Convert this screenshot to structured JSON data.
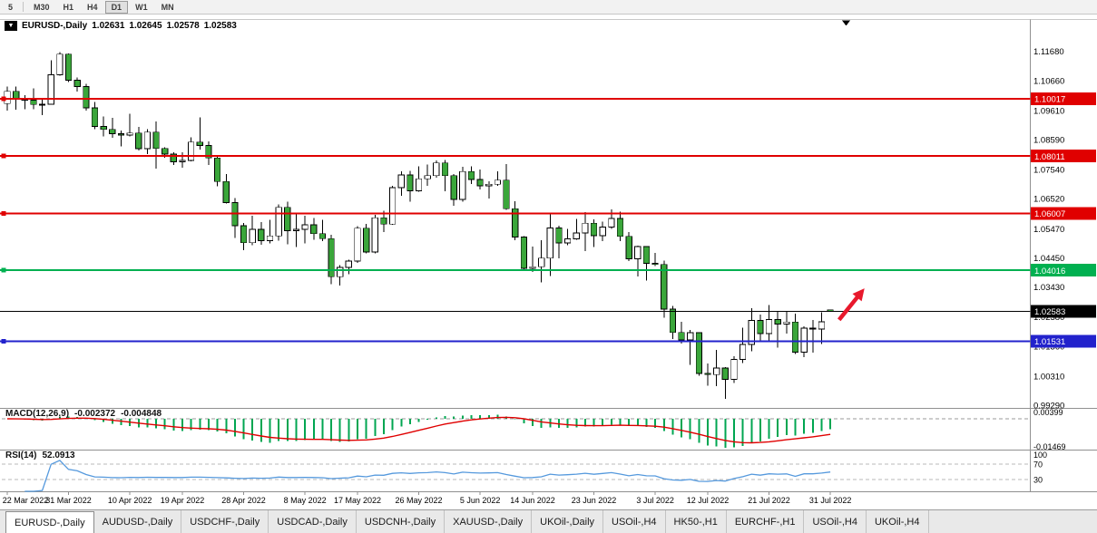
{
  "toolbar": {
    "periods": [
      {
        "label": "5"
      },
      {
        "label": "M30"
      },
      {
        "label": "H1"
      },
      {
        "label": "H4"
      },
      {
        "label": "D1",
        "active": true
      },
      {
        "label": "W1"
      },
      {
        "label": "MN"
      }
    ]
  },
  "chart": {
    "symbol_icon": "▼",
    "symbol": "EURUSD-,Daily",
    "open": "1.02631",
    "high": "1.02645",
    "low": "1.02578",
    "close": "1.02583"
  },
  "indicators": {
    "macd": {
      "name": "MACD(12,26,9)",
      "main_value": "-0.002372",
      "signal_value": "-0.004848",
      "axis_max": "0.00399",
      "axis_min": "-0.01469",
      "scale_max": 0.00399,
      "scale_min": -0.01469
    },
    "rsi": {
      "name": "RSI(14)",
      "value": "52.0913",
      "axis_labels": [
        "100",
        "70",
        "30"
      ],
      "levels": [
        70,
        30
      ]
    }
  },
  "price_axis": {
    "labels": [
      "1.11680",
      "1.10660",
      "1.09610",
      "1.08590",
      "1.07540",
      "1.06520",
      "1.05470",
      "1.04450",
      "1.03430",
      "1.02380",
      "1.01360",
      "1.00310",
      "0.99290"
    ]
  },
  "hlines": [
    {
      "price": 1.10017,
      "label": "1.10017",
      "color": "#e00000",
      "width": 2,
      "anchor": true
    },
    {
      "price": 1.08011,
      "label": "1.08011",
      "color": "#e00000",
      "width": 2,
      "anchor": true
    },
    {
      "price": 1.06007,
      "label": "1.06007",
      "color": "#e00000",
      "width": 2,
      "anchor": true
    },
    {
      "price": 1.04016,
      "label": "1.04016",
      "color": "#00b050",
      "width": 2,
      "anchor": true
    },
    {
      "price": 1.01531,
      "label": "1.01531",
      "color": "#2222cc",
      "width": 2,
      "anchor": true
    },
    {
      "price": 1.02583,
      "label": "1.02583",
      "color": "#000000",
      "width": 1,
      "anchor": false
    }
  ],
  "annotation_arrow": {
    "color": "#e8192c",
    "from_bar": 95.0,
    "to_bar": 97.9,
    "start_price": 1.0228,
    "end_price": 1.0338
  },
  "chart_data": {
    "type": "candlestick",
    "symbol": "EURUSD",
    "timeframe": "Daily",
    "ylim": [
      0.9929,
      1.1278
    ],
    "price_top": 1.1278,
    "price_bottom": 0.9929,
    "x_date_labels": [
      {
        "bar": 0,
        "text": "22 Mar 2022"
      },
      {
        "bar": 7,
        "text": "31 Mar 2022"
      },
      {
        "bar": 14,
        "text": "10 Apr 2022"
      },
      {
        "bar": 20,
        "text": "19 Apr 2022"
      },
      {
        "bar": 27,
        "text": "28 Apr 2022"
      },
      {
        "bar": 34,
        "text": "8 May 2022"
      },
      {
        "bar": 40,
        "text": "17 May 2022"
      },
      {
        "bar": 47,
        "text": "26 May 2022"
      },
      {
        "bar": 54,
        "text": "5 Jun 2022"
      },
      {
        "bar": 60,
        "text": "14 Jun 2022"
      },
      {
        "bar": 67,
        "text": "23 Jun 2022"
      },
      {
        "bar": 74,
        "text": "3 Jul 2022"
      },
      {
        "bar": 80,
        "text": "12 Jul 2022"
      },
      {
        "bar": 87,
        "text": "21 Jul 2022"
      },
      {
        "bar": 94,
        "text": "31 Jul 2022"
      }
    ],
    "candles": [
      [
        1.0985,
        1.1045,
        1.096,
        1.1028
      ],
      [
        1.1028,
        1.1044,
        1.0963,
        1.1004
      ],
      [
        1.1004,
        1.1014,
        1.0965,
        1.0997
      ],
      [
        1.0997,
        1.1039,
        1.0965,
        1.0982
      ],
      [
        1.0982,
        1.0999,
        1.0944,
        1.0983
      ],
      [
        1.0983,
        1.1137,
        1.0981,
        1.1086
      ],
      [
        1.1086,
        1.1166,
        1.1083,
        1.1158
      ],
      [
        1.1158,
        1.116,
        1.106,
        1.1067
      ],
      [
        1.1067,
        1.1077,
        1.1027,
        1.1045
      ],
      [
        1.1045,
        1.1055,
        1.096,
        1.097
      ],
      [
        1.097,
        1.099,
        1.0895,
        1.0905
      ],
      [
        1.0905,
        1.094,
        1.087,
        1.0895
      ],
      [
        1.0895,
        1.0935,
        1.0865,
        1.088
      ],
      [
        1.088,
        1.089,
        1.0835,
        1.0875
      ],
      [
        1.0875,
        1.095,
        1.087,
        1.0882
      ],
      [
        1.0882,
        1.0904,
        1.0821,
        1.0827
      ],
      [
        1.0827,
        1.0896,
        1.0809,
        1.0885
      ],
      [
        1.0885,
        1.0923,
        1.0757,
        1.0828
      ],
      [
        1.0828,
        1.0832,
        1.0796,
        1.0808
      ],
      [
        1.0808,
        1.0815,
        1.077,
        1.0781
      ],
      [
        1.0781,
        1.0815,
        1.0761,
        1.0786
      ],
      [
        1.0786,
        1.0867,
        1.0783,
        1.085
      ],
      [
        1.085,
        1.0936,
        1.0824,
        1.0838
      ],
      [
        1.0838,
        1.0852,
        1.077,
        1.0795
      ],
      [
        1.0795,
        1.08,
        1.0695,
        1.0712
      ],
      [
        1.0712,
        1.0738,
        1.0635,
        1.0638
      ],
      [
        1.0638,
        1.0655,
        1.0514,
        1.0557
      ],
      [
        1.0557,
        1.0567,
        1.0471,
        1.0498
      ],
      [
        1.0498,
        1.0593,
        1.049,
        1.0545
      ],
      [
        1.0545,
        1.057,
        1.0491,
        1.0505
      ],
      [
        1.0505,
        1.0578,
        1.0495,
        1.0522
      ],
      [
        1.0522,
        1.0632,
        1.0505,
        1.0622
      ],
      [
        1.0622,
        1.0642,
        1.0492,
        1.054
      ],
      [
        1.054,
        1.0599,
        1.0483,
        1.0545
      ],
      [
        1.0545,
        1.0593,
        1.0495,
        1.0561
      ],
      [
        1.0561,
        1.0585,
        1.0508,
        1.053
      ],
      [
        1.053,
        1.0578,
        1.0503,
        1.0512
      ],
      [
        1.0512,
        1.0525,
        1.0352,
        1.0379
      ],
      [
        1.0379,
        1.042,
        1.0348,
        1.0411
      ],
      [
        1.0411,
        1.0438,
        1.0387,
        1.0434
      ],
      [
        1.0434,
        1.0556,
        1.0428,
        1.0549
      ],
      [
        1.0549,
        1.0564,
        1.0461,
        1.0465
      ],
      [
        1.0465,
        1.0596,
        1.046,
        1.0585
      ],
      [
        1.0585,
        1.061,
        1.0535,
        1.0563
      ],
      [
        1.0563,
        1.0697,
        1.0561,
        1.0691
      ],
      [
        1.0691,
        1.0748,
        1.0662,
        1.0735
      ],
      [
        1.0735,
        1.0749,
        1.0641,
        1.068
      ],
      [
        1.068,
        1.0765,
        1.0677,
        1.0722
      ],
      [
        1.0722,
        1.0772,
        1.0697,
        1.0733
      ],
      [
        1.0733,
        1.0786,
        1.0726,
        1.0777
      ],
      [
        1.0777,
        1.0787,
        1.0678,
        1.0733
      ],
      [
        1.0733,
        1.0739,
        1.0627,
        1.065
      ],
      [
        1.065,
        1.0764,
        1.0642,
        1.0747
      ],
      [
        1.0747,
        1.0765,
        1.0704,
        1.0719
      ],
      [
        1.0719,
        1.0755,
        1.0685,
        1.0697
      ],
      [
        1.0697,
        1.0713,
        1.0653,
        1.0703
      ],
      [
        1.0703,
        1.0748,
        1.0697,
        1.0717
      ],
      [
        1.0717,
        1.0774,
        1.0613,
        1.0617
      ],
      [
        1.0617,
        1.0643,
        1.0506,
        1.0518
      ],
      [
        1.0518,
        1.0521,
        1.0399,
        1.0408
      ],
      [
        1.0408,
        1.0484,
        1.0396,
        1.0414
      ],
      [
        1.0414,
        1.0507,
        1.0359,
        1.0444
      ],
      [
        1.0444,
        1.0601,
        1.0381,
        1.055
      ],
      [
        1.055,
        1.0557,
        1.0443,
        1.0497
      ],
      [
        1.0497,
        1.0546,
        1.0489,
        1.0511
      ],
      [
        1.0511,
        1.0582,
        1.0508,
        1.0532
      ],
      [
        1.0532,
        1.0605,
        1.0469,
        1.0566
      ],
      [
        1.0566,
        1.058,
        1.0483,
        1.0523
      ],
      [
        1.0523,
        1.0571,
        1.0503,
        1.0553
      ],
      [
        1.0553,
        1.0614,
        1.0547,
        1.0583
      ],
      [
        1.0583,
        1.0606,
        1.0503,
        1.052
      ],
      [
        1.052,
        1.0536,
        1.0434,
        1.0442
      ],
      [
        1.0442,
        1.0488,
        1.038,
        1.0484
      ],
      [
        1.0484,
        1.0486,
        1.0365,
        1.0426
      ],
      [
        1.0426,
        1.0462,
        1.0417,
        1.0422
      ],
      [
        1.0422,
        1.0436,
        1.0235,
        1.0265
      ],
      [
        1.0265,
        1.0276,
        1.0161,
        1.0184
      ],
      [
        1.0184,
        1.0221,
        1.0145,
        1.0158
      ],
      [
        1.0158,
        1.0192,
        1.0071,
        1.0183
      ],
      [
        1.0183,
        1.0184,
        1.0032,
        1.004
      ],
      [
        1.004,
        1.0075,
        0.9998,
        1.0036
      ],
      [
        1.0036,
        1.0122,
        0.9996,
        1.0059
      ],
      [
        1.0059,
        1.0062,
        0.9952,
        1.0019
      ],
      [
        1.0019,
        1.01,
        1.0006,
        1.0089
      ],
      [
        1.0089,
        1.0201,
        1.0077,
        1.0142
      ],
      [
        1.0142,
        1.0269,
        1.0118,
        1.0226
      ],
      [
        1.0226,
        1.0246,
        1.0155,
        1.018
      ],
      [
        1.018,
        1.0279,
        1.0152,
        1.0229
      ],
      [
        1.0229,
        1.0257,
        1.013,
        1.0213
      ],
      [
        1.0213,
        1.0258,
        1.018,
        1.022
      ],
      [
        1.022,
        1.025,
        1.0108,
        1.0115
      ],
      [
        1.0115,
        1.0205,
        1.0097,
        1.0199
      ],
      [
        1.0199,
        1.0228,
        1.0113,
        1.0196
      ],
      [
        1.0196,
        1.0254,
        1.0144,
        1.0221
      ],
      [
        1.02631,
        1.02645,
        1.02578,
        1.02583
      ]
    ]
  },
  "tabs": [
    {
      "label": "EURUSD-,Daily",
      "active": true
    },
    {
      "label": "AUDUSD-,Daily"
    },
    {
      "label": "USDCHF-,Daily"
    },
    {
      "label": "USDCAD-,Daily"
    },
    {
      "label": "USDCNH-,Daily"
    },
    {
      "label": "XAUUSD-,Daily"
    },
    {
      "label": "UKOil-,Daily"
    },
    {
      "label": "USOil-,H4"
    },
    {
      "label": "HK50-,H1"
    },
    {
      "label": "EURCHF-,H1"
    },
    {
      "label": "USOil-,H4"
    },
    {
      "label": "UKOil-,H4"
    }
  ],
  "colors": {
    "bull": "#ffffff",
    "bear": "#3aa63a",
    "wick": "#000000",
    "macd_hist": "#00a651",
    "macd_signal": "#e00000",
    "rsi_line": "#5599dd",
    "level_dash": "#b8b8b8",
    "axis_line": "#909090",
    "arrow": "#e8192c"
  }
}
